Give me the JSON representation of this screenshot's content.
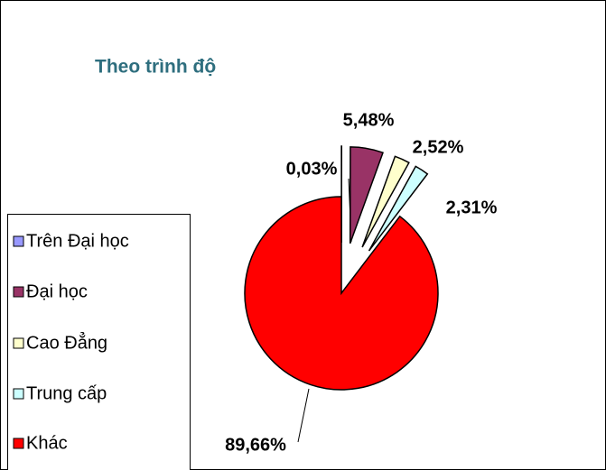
{
  "chart_data": {
    "type": "pie",
    "title": "Theo trình độ",
    "categories": [
      "Trên Đại học",
      "Đại học",
      "Cao Đẳng",
      "Trung cấp",
      "Khác"
    ],
    "values": [
      0.03,
      5.48,
      2.52,
      2.31,
      89.66
    ],
    "value_labels": [
      "0,03%",
      "5,48%",
      "2,52%",
      "2,31%",
      "89,66%"
    ],
    "colors": [
      "#9999ff",
      "#993366",
      "#ffffcc",
      "#ccffff",
      "#ff0000"
    ],
    "legend": "left"
  }
}
